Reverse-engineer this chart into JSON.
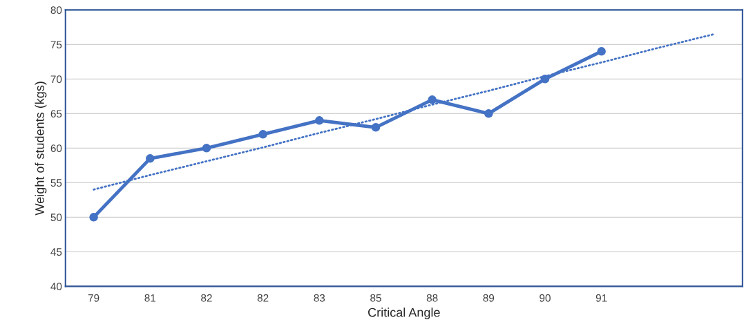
{
  "chart_data": {
    "type": "line",
    "xlabel": "Critical Angle",
    "ylabel": "Weight of students (kgs)",
    "categories": [
      "79",
      "81",
      "82",
      "82",
      "83",
      "85",
      "88",
      "89",
      "90",
      "91",
      null,
      null
    ],
    "series": [
      {
        "color": "#4472c4",
        "marker": "circle",
        "line_style": "solid",
        "values": [
          50,
          58.5,
          60,
          62,
          64,
          63,
          67,
          65,
          70,
          74,
          null,
          null
        ]
      },
      {
        "type": "line",
        "color": "#4472c4",
        "marker": "none",
        "line_style": "dotted",
        "values": [
          54,
          56.1,
          58.1,
          60.1,
          62.2,
          64.2,
          66.3,
          68.3,
          70.4,
          72.4,
          74.5,
          76.5
        ]
      }
    ],
    "ylim": [
      40,
      80
    ],
    "yticks": [
      40,
      45,
      50,
      55,
      60,
      65,
      70,
      75,
      80
    ],
    "grid": "y",
    "legend": false
  }
}
